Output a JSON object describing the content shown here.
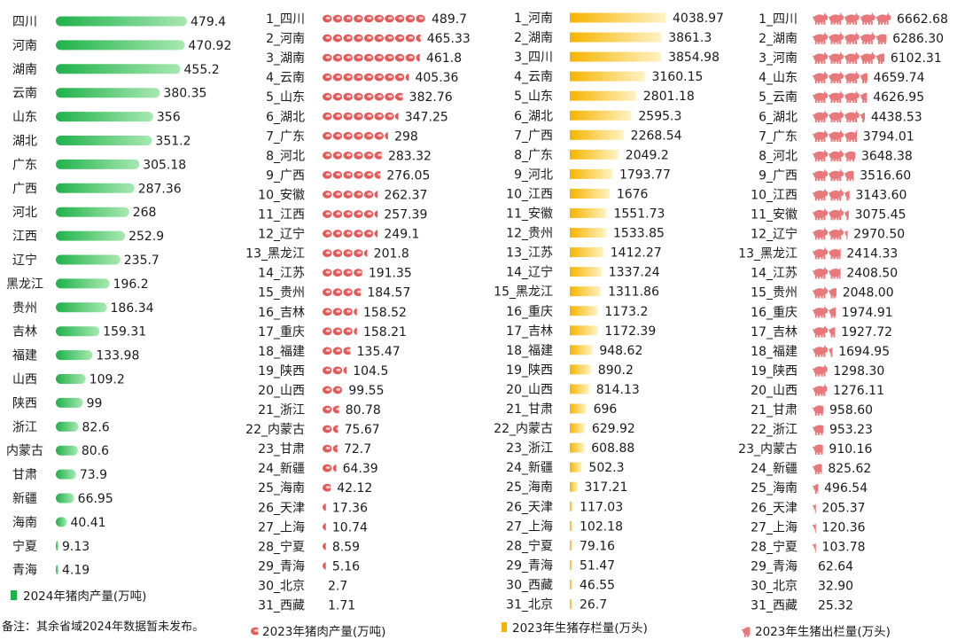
{
  "note": "备注：其余省域2024年数据暂未发布。",
  "colors": {
    "green_light": "#9be3a6",
    "green_dark": "#1fb24a",
    "meat_red": "#e25a5a",
    "meat_light": "#f7caca",
    "gold_light": "#fff1b8",
    "gold_dark": "#f6b400",
    "pig": "#e8787a"
  },
  "chart_data": [
    {
      "type": "bar",
      "legend": "2024年猪肉产量(万吨)",
      "categories": [
        "四川",
        "河南",
        "湖南",
        "云南",
        "山东",
        "湖北",
        "广东",
        "广西",
        "河北",
        "江西",
        "辽宁",
        "黑龙江",
        "贵州",
        "吉林",
        "福建",
        "山西",
        "陕西",
        "浙江",
        "内蒙古",
        "甘肃",
        "新疆",
        "海南",
        "宁夏",
        "青海"
      ],
      "values": [
        479.4,
        470.92,
        455.2,
        380.35,
        356,
        351.2,
        305.18,
        287.36,
        268,
        252.9,
        235.7,
        196.2,
        186.34,
        159.31,
        133.98,
        109.2,
        99,
        82.6,
        80.6,
        73.9,
        66.95,
        40.41,
        9.13,
        4.19
      ],
      "value_labels": [
        "479.4",
        "470.92",
        "455.2",
        "380.35",
        "356",
        "351.2",
        "305.18",
        "287.36",
        "268",
        "252.9",
        "235.7",
        "196.2",
        "186.34",
        "159.31",
        "133.98",
        "109.2",
        "99",
        "82.6",
        "80.6",
        "73.9",
        "66.95",
        "40.41",
        "9.13",
        "4.19"
      ]
    },
    {
      "type": "bar",
      "legend": "2023年猪肉产量(万吨)",
      "categories": [
        "1_四川",
        "2_河南",
        "3_湖南",
        "4_云南",
        "5_山东",
        "6_湖北",
        "7_广东",
        "8_河北",
        "9_广西",
        "10_安徽",
        "11_江西",
        "12_辽宁",
        "13_黑龙江",
        "14_江苏",
        "15_贵州",
        "16_吉林",
        "17_重庆",
        "18_福建",
        "19_陕西",
        "20_山西",
        "21_浙江",
        "22_内蒙古",
        "23_甘肃",
        "24_新疆",
        "25_海南",
        "26_天津",
        "27_上海",
        "28_宁夏",
        "29_青海",
        "30_北京",
        "31_西藏"
      ],
      "values": [
        489.7,
        465.33,
        461.8,
        405.36,
        382.76,
        347.25,
        298,
        283.32,
        276.05,
        262.37,
        257.39,
        249.1,
        201.8,
        191.35,
        184.57,
        158.52,
        158.21,
        135.47,
        104.5,
        99.55,
        80.78,
        75.67,
        72.7,
        64.39,
        42.12,
        17.36,
        10.74,
        8.59,
        5.16,
        2.7,
        1.71
      ],
      "value_labels": [
        "489.7",
        "465.33",
        "461.8",
        "405.36",
        "382.76",
        "347.25",
        "298",
        "283.32",
        "276.05",
        "262.37",
        "257.39",
        "249.1",
        "201.8",
        "191.35",
        "184.57",
        "158.52",
        "158.21",
        "135.47",
        "104.5",
        "99.55",
        "80.78",
        "75.67",
        "72.7",
        "64.39",
        "42.12",
        "17.36",
        "10.74",
        "8.59",
        "5.16",
        "2.7",
        "1.71"
      ]
    },
    {
      "type": "bar",
      "legend": "2023年生猪存栏量(万头)",
      "categories": [
        "1_河南",
        "2_湖南",
        "3_四川",
        "4_云南",
        "5_山东",
        "6_湖北",
        "7_广西",
        "8_广东",
        "9_河北",
        "10_江西",
        "11_安徽",
        "12_贵州",
        "13_江苏",
        "14_辽宁",
        "15_黑龙江",
        "16_重庆",
        "17_吉林",
        "18_福建",
        "19_陕西",
        "20_山西",
        "21_甘肃",
        "22_内蒙古",
        "23_浙江",
        "24_新疆",
        "25_海南",
        "26_天津",
        "27_上海",
        "28_宁夏",
        "29_青海",
        "30_西藏",
        "31_北京"
      ],
      "values": [
        4038.97,
        3861.3,
        3854.98,
        3160.15,
        2801.18,
        2595.3,
        2268.54,
        2049.2,
        1793.77,
        1676,
        1551.73,
        1533.85,
        1412.27,
        1337.24,
        1311.86,
        1173.2,
        1172.39,
        948.62,
        890.2,
        814.13,
        696,
        629.92,
        608.88,
        502.3,
        317.21,
        117.03,
        102.18,
        79.16,
        51.47,
        46.55,
        26.7
      ],
      "value_labels": [
        "4038.97",
        "3861.3",
        "3854.98",
        "3160.15",
        "2801.18",
        "2595.3",
        "2268.54",
        "2049.2",
        "1793.77",
        "1676",
        "1551.73",
        "1533.85",
        "1412.27",
        "1337.24",
        "1311.86",
        "1173.2",
        "1172.39",
        "948.62",
        "890.2",
        "814.13",
        "696",
        "629.92",
        "608.88",
        "502.3",
        "317.21",
        "117.03",
        "102.18",
        "79.16",
        "51.47",
        "46.55",
        "26.7"
      ]
    },
    {
      "type": "bar",
      "legend": "2023年生猪出栏量(万头)",
      "categories": [
        "1_四川",
        "2_湖南",
        "3_河南",
        "4_山东",
        "5_云南",
        "6_湖北",
        "7_广东",
        "8_河北",
        "9_广西",
        "10_江西",
        "11_安徽",
        "12_辽宁",
        "13_黑龙江",
        "14_江苏",
        "15_贵州",
        "16_重庆",
        "17_吉林",
        "18_福建",
        "19_陕西",
        "20_山西",
        "21_甘肃",
        "22_浙江",
        "23_内蒙古",
        "24_新疆",
        "25_海南",
        "26_天津",
        "27_上海",
        "28_宁夏",
        "29_青海",
        "30_北京",
        "31_西藏"
      ],
      "values": [
        6662.68,
        6286.3,
        6102.31,
        4659.74,
        4626.95,
        4438.53,
        3794.01,
        3648.38,
        3516.6,
        3143.6,
        3075.45,
        2970.5,
        2414.33,
        2408.5,
        2048,
        1974.91,
        1927.72,
        1694.95,
        1298.3,
        1276.11,
        958.6,
        953.23,
        910.16,
        825.62,
        496.54,
        205.37,
        120.36,
        103.78,
        62.64,
        32.9,
        25.32
      ],
      "value_labels": [
        "6662.68",
        "6286.30",
        "6102.31",
        "4659.74",
        "4626.95",
        "4438.53",
        "3794.01",
        "3648.38",
        "3516.60",
        "3143.60",
        "3075.45",
        "2970.50",
        "2414.33",
        "2408.50",
        "2048.00",
        "1974.91",
        "1927.72",
        "1694.95",
        "1298.30",
        "1276.11",
        "958.60",
        "953.23",
        "910.16",
        "825.62",
        "496.54",
        "205.37",
        "120.36",
        "103.78",
        "62.64",
        "32.90",
        "25.32"
      ]
    }
  ]
}
